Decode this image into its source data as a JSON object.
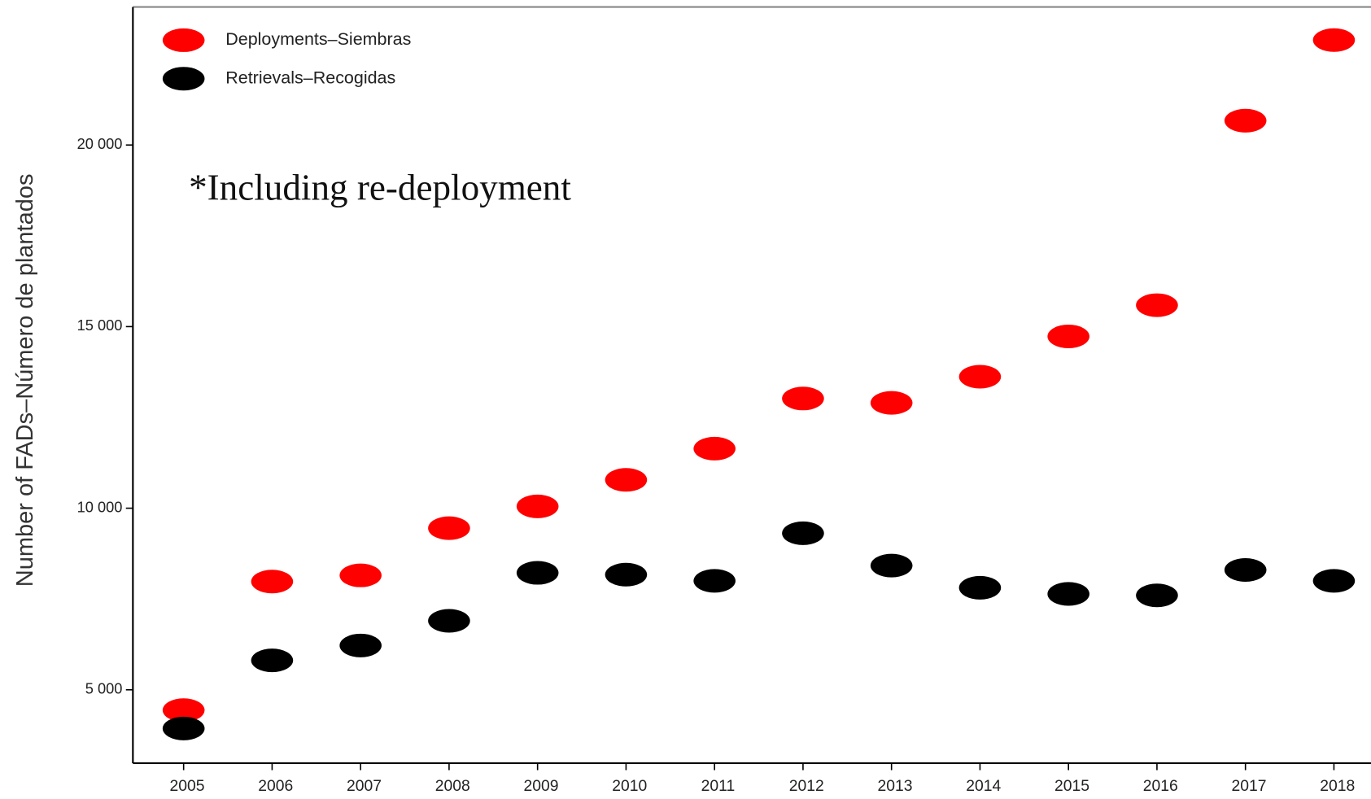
{
  "chart_data": {
    "type": "scatter",
    "y_label": "Number of FADs–Número de plantados",
    "annotation": "*Including re-deployment",
    "categories": [
      "2005",
      "2006",
      "2007",
      "2008",
      "2009",
      "2010",
      "2011",
      "2012",
      "2013",
      "2014",
      "2015",
      "2016",
      "2017",
      "2018"
    ],
    "series": [
      {
        "name": "Deployments–Siembras",
        "color": "#ff0000",
        "values": [
          4440,
          7980,
          8150,
          9450,
          10050,
          10780,
          11640,
          13020,
          12900,
          13620,
          14730,
          15590,
          20670,
          22890
        ]
      },
      {
        "name": "Retrievals–Recogidas",
        "color": "#000000",
        "values": [
          3935,
          5810,
          6220,
          6900,
          8220,
          8170,
          8000,
          9310,
          8420,
          7810,
          7640,
          7600,
          8300,
          8000
        ]
      }
    ],
    "ylim": [
      2980,
      23800
    ],
    "yticks": [
      {
        "value": 5000,
        "label": "5 000"
      },
      {
        "value": 10000,
        "label": "10 000"
      },
      {
        "value": 15000,
        "label": "15 000"
      },
      {
        "value": 20000,
        "label": "20 000"
      }
    ],
    "legend": "upper left"
  }
}
